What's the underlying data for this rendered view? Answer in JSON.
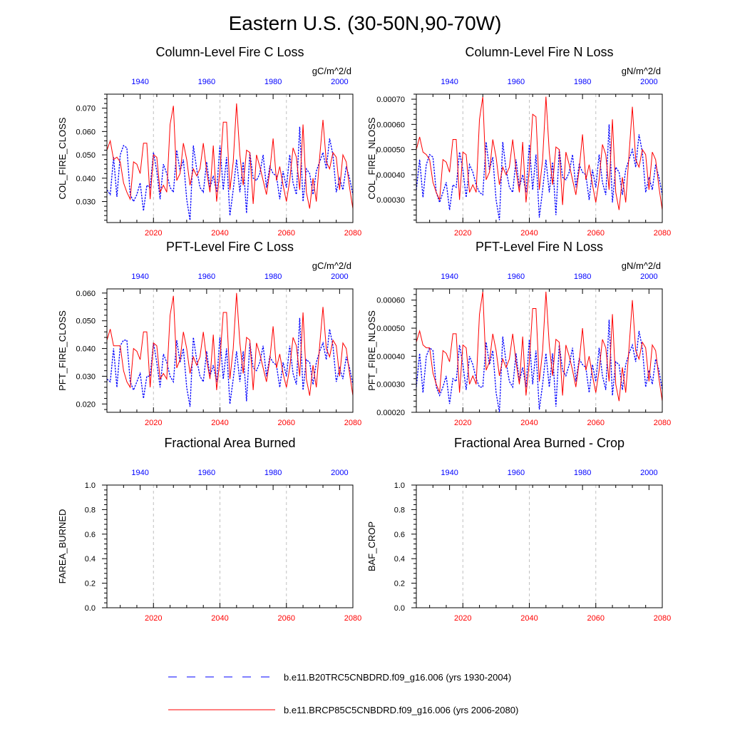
{
  "page_title": "Eastern U.S. (30-50N,90-70W)",
  "colors": {
    "blue": "#0000ff",
    "red": "#ff0000",
    "axis": "#000000",
    "grid": "#c0c0c0"
  },
  "legend": [
    {
      "name": "blue",
      "label": "b.e11.B20TRC5CNBDRD.f09_g16.006 (yrs 1930-2004)",
      "style": "dashed",
      "color": "#0000ff"
    },
    {
      "name": "red",
      "label": "b.e11.BRCP85C5CNBDRD.f09_g16.006 (yrs 2006-2080)",
      "style": "solid",
      "color": "#ff0000"
    }
  ],
  "chart_data": [
    {
      "id": "col-fire-c",
      "type": "line",
      "title": "Column-Level Fire C Loss",
      "units": "gC/m^2/d",
      "ylabel": "COL_FIRE_CLOSS",
      "ylim": [
        0.021,
        0.076
      ],
      "yticks": [
        0.03,
        0.04,
        0.05,
        0.06,
        0.07
      ],
      "ytick_labels": [
        "0.030",
        "0.040",
        "0.050",
        "0.060",
        "0.070"
      ],
      "bottom_axis": {
        "range": [
          2006,
          2080
        ],
        "ticks": [
          2020,
          2040,
          2060,
          2080
        ],
        "labels": [
          "2020",
          "2040",
          "2060",
          "2080"
        ]
      },
      "top_axis": {
        "range": [
          1930,
          2004
        ],
        "ticks": [
          1940,
          1960,
          1980,
          2000
        ],
        "labels": [
          "1940",
          "1960",
          "1980",
          "2000"
        ]
      },
      "series": [
        {
          "name": "blue",
          "values": [
            0.035,
            0.033,
            0.049,
            0.032,
            0.05,
            0.054,
            0.053,
            0.033,
            0.03,
            0.033,
            0.038,
            0.026,
            0.037,
            0.036,
            0.051,
            0.043,
            0.031,
            0.046,
            0.042,
            0.036,
            0.034,
            0.052,
            0.043,
            0.048,
            0.031,
            0.022,
            0.054,
            0.044,
            0.036,
            0.034,
            0.047,
            0.036,
            0.041,
            0.034,
            0.054,
            0.035,
            0.049,
            0.024,
            0.035,
            0.048,
            0.034,
            0.047,
            0.025,
            0.051,
            0.04,
            0.039,
            0.042,
            0.05,
            0.036,
            0.045,
            0.042,
            0.041,
            0.031,
            0.043,
            0.036,
            0.05,
            0.038,
            0.033,
            0.062,
            0.03,
            0.044,
            0.042,
            0.033,
            0.043,
            0.047,
            0.051,
            0.044,
            0.057,
            0.05,
            0.034,
            0.04,
            0.035,
            0.045,
            0.04,
            0.033
          ]
        },
        {
          "name": "red",
          "values": [
            0.052,
            0.056,
            0.048,
            0.049,
            0.047,
            0.038,
            0.034,
            0.031,
            0.047,
            0.046,
            0.042,
            0.055,
            0.055,
            0.031,
            0.05,
            0.049,
            0.034,
            0.037,
            0.034,
            0.063,
            0.071,
            0.039,
            0.042,
            0.055,
            0.048,
            0.037,
            0.044,
            0.041,
            0.044,
            0.055,
            0.043,
            0.034,
            0.054,
            0.03,
            0.043,
            0.064,
            0.064,
            0.035,
            0.047,
            0.072,
            0.05,
            0.037,
            0.052,
            0.051,
            0.029,
            0.05,
            0.045,
            0.039,
            0.033,
            0.043,
            0.057,
            0.039,
            0.045,
            0.037,
            0.03,
            0.039,
            0.053,
            0.049,
            0.035,
            0.063,
            0.034,
            0.027,
            0.04,
            0.03,
            0.049,
            0.065,
            0.047,
            0.044,
            0.051,
            0.049,
            0.035,
            0.05,
            0.047,
            0.036,
            0.027
          ]
        }
      ]
    },
    {
      "id": "col-fire-n",
      "type": "line",
      "title": "Column-Level Fire N Loss",
      "units": "gN/m^2/d",
      "ylabel": "COL_FIRE_NLOSS",
      "ylim": [
        0.00021,
        0.00072
      ],
      "yticks": [
        0.0003,
        0.0004,
        0.0005,
        0.0006,
        0.0007
      ],
      "ytick_labels": [
        "0.00030",
        "0.00040",
        "0.00050",
        "0.00060",
        "0.00070"
      ],
      "bottom_axis": {
        "range": [
          2006,
          2080
        ],
        "ticks": [
          2020,
          2040,
          2060,
          2080
        ],
        "labels": [
          "2020",
          "2040",
          "2060",
          "2080"
        ]
      },
      "top_axis": {
        "range": [
          1930,
          2004
        ],
        "ticks": [
          1940,
          1960,
          1980,
          2000
        ],
        "labels": [
          "1940",
          "1960",
          "1980",
          "2000"
        ]
      },
      "series": [
        {
          "name": "blue",
          "values": [
            0.00034,
            0.00046,
            0.00031,
            0.00044,
            0.00048,
            0.00047,
            0.00033,
            0.00029,
            0.00033,
            0.00037,
            0.00026,
            0.00036,
            0.00035,
            0.00049,
            0.00042,
            0.00031,
            0.00044,
            0.00041,
            0.00036,
            0.00033,
            0.00032,
            0.00053,
            0.00042,
            0.00047,
            0.0003,
            0.00022,
            0.00053,
            0.00042,
            0.00035,
            0.00033,
            0.00046,
            0.00035,
            0.0004,
            0.00033,
            0.00052,
            0.00034,
            0.00048,
            0.00023,
            0.00034,
            0.00046,
            0.00033,
            0.00045,
            0.00024,
            0.0005,
            0.00039,
            0.00038,
            0.00041,
            0.00048,
            0.00035,
            0.00044,
            0.00041,
            0.0004,
            0.0003,
            0.00042,
            0.00035,
            0.00048,
            0.00037,
            0.00032,
            0.0006,
            0.00029,
            0.00043,
            0.00041,
            0.00032,
            0.00042,
            0.00046,
            0.0005,
            0.00043,
            0.00056,
            0.00049,
            0.00033,
            0.00039,
            0.00034,
            0.00044,
            0.00039,
            0.00032
          ]
        },
        {
          "name": "red",
          "values": [
            0.0005,
            0.00055,
            0.00049,
            0.00048,
            0.00046,
            0.00037,
            0.00033,
            0.0003,
            0.00046,
            0.00045,
            0.00041,
            0.00054,
            0.00054,
            0.0003,
            0.00049,
            0.00048,
            0.00033,
            0.00036,
            0.00033,
            0.00062,
            0.00071,
            0.00038,
            0.00041,
            0.00054,
            0.00047,
            0.00036,
            0.00043,
            0.0004,
            0.00043,
            0.00054,
            0.00042,
            0.00033,
            0.00053,
            0.00029,
            0.00042,
            0.00064,
            0.00063,
            0.00034,
            0.00046,
            0.00071,
            0.00049,
            0.00036,
            0.00051,
            0.0005,
            0.00028,
            0.00049,
            0.00044,
            0.00038,
            0.00032,
            0.00042,
            0.00056,
            0.00038,
            0.00044,
            0.00036,
            0.00029,
            0.00038,
            0.00052,
            0.00048,
            0.00034,
            0.00062,
            0.00033,
            0.00026,
            0.00039,
            0.00029,
            0.00048,
            0.00067,
            0.00046,
            0.00043,
            0.0005,
            0.00048,
            0.00034,
            0.00049,
            0.00046,
            0.00035,
            0.00026
          ]
        }
      ]
    },
    {
      "id": "pft-fire-c",
      "type": "line",
      "title": "PFT-Level Fire C Loss",
      "units": "gC/m^2/d",
      "ylabel": "PFT_FIRE_CLOSS",
      "ylim": [
        0.017,
        0.0615
      ],
      "yticks": [
        0.02,
        0.03,
        0.04,
        0.05,
        0.06
      ],
      "ytick_labels": [
        "0.020",
        "0.030",
        "0.040",
        "0.050",
        "0.060"
      ],
      "bottom_axis": {
        "range": [
          2006,
          2080
        ],
        "ticks": [
          2020,
          2040,
          2060,
          2080
        ],
        "labels": [
          "2020",
          "2040",
          "2060",
          "2080"
        ]
      },
      "top_axis": {
        "range": [
          1930,
          2004
        ],
        "ticks": [
          1940,
          1960,
          1980,
          2000
        ],
        "labels": [
          "1940",
          "1960",
          "1980",
          "2000"
        ]
      },
      "series": [
        {
          "name": "blue",
          "values": [
            0.029,
            0.028,
            0.04,
            0.026,
            0.041,
            0.043,
            0.043,
            0.028,
            0.025,
            0.028,
            0.031,
            0.022,
            0.03,
            0.03,
            0.042,
            0.035,
            0.026,
            0.038,
            0.035,
            0.03,
            0.028,
            0.043,
            0.035,
            0.04,
            0.026,
            0.019,
            0.044,
            0.036,
            0.03,
            0.028,
            0.039,
            0.03,
            0.034,
            0.028,
            0.044,
            0.029,
            0.04,
            0.02,
            0.029,
            0.039,
            0.028,
            0.039,
            0.021,
            0.042,
            0.033,
            0.032,
            0.035,
            0.041,
            0.03,
            0.037,
            0.035,
            0.034,
            0.026,
            0.035,
            0.03,
            0.041,
            0.031,
            0.027,
            0.051,
            0.025,
            0.036,
            0.035,
            0.027,
            0.035,
            0.039,
            0.042,
            0.036,
            0.047,
            0.041,
            0.028,
            0.033,
            0.029,
            0.037,
            0.033,
            0.027
          ]
        },
        {
          "name": "red",
          "values": [
            0.043,
            0.047,
            0.041,
            0.041,
            0.041,
            0.032,
            0.028,
            0.026,
            0.04,
            0.039,
            0.036,
            0.046,
            0.046,
            0.026,
            0.042,
            0.041,
            0.029,
            0.031,
            0.029,
            0.052,
            0.059,
            0.033,
            0.036,
            0.046,
            0.04,
            0.031,
            0.037,
            0.034,
            0.037,
            0.046,
            0.036,
            0.029,
            0.045,
            0.025,
            0.036,
            0.053,
            0.053,
            0.029,
            0.04,
            0.06,
            0.042,
            0.031,
            0.044,
            0.043,
            0.025,
            0.042,
            0.038,
            0.033,
            0.028,
            0.036,
            0.048,
            0.033,
            0.038,
            0.031,
            0.026,
            0.033,
            0.044,
            0.041,
            0.03,
            0.053,
            0.029,
            0.023,
            0.034,
            0.026,
            0.041,
            0.055,
            0.04,
            0.037,
            0.043,
            0.041,
            0.03,
            0.042,
            0.04,
            0.031,
            0.023
          ]
        }
      ]
    },
    {
      "id": "pft-fire-n",
      "type": "line",
      "title": "PFT-Level Fire N Loss",
      "units": "gN/m^2/d",
      "ylabel": "PFT_FIRE_NLOSS",
      "ylim": [
        0.0002,
        0.00064
      ],
      "yticks": [
        0.0002,
        0.0003,
        0.0004,
        0.0005,
        0.0006
      ],
      "ytick_labels": [
        "0.00020",
        "0.00030",
        "0.00040",
        "0.00050",
        "0.00060"
      ],
      "bottom_axis": {
        "range": [
          2006,
          2080
        ],
        "ticks": [
          2020,
          2040,
          2060,
          2080
        ],
        "labels": [
          "2020",
          "2040",
          "2060",
          "2080"
        ]
      },
      "top_axis": {
        "range": [
          1930,
          2004
        ],
        "ticks": [
          1940,
          1960,
          1980,
          2000
        ],
        "labels": [
          "1940",
          "1960",
          "1980",
          "2000"
        ]
      },
      "series": [
        {
          "name": "blue",
          "values": [
            0.00029,
            0.00041,
            0.00027,
            0.0004,
            0.00043,
            0.00042,
            0.00029,
            0.00026,
            0.00029,
            0.00033,
            0.00023,
            0.00032,
            0.00031,
            0.00044,
            0.00037,
            0.00028,
            0.0004,
            0.00037,
            0.00032,
            0.00029,
            0.00029,
            0.00045,
            0.00037,
            0.00042,
            0.00027,
            0.0002,
            0.00047,
            0.00038,
            0.00031,
            0.00029,
            0.00041,
            0.00031,
            0.00036,
            0.00029,
            0.00046,
            0.0003,
            0.00042,
            0.00021,
            0.0003,
            0.00041,
            0.00029,
            0.00041,
            0.00022,
            0.00044,
            0.00035,
            0.00033,
            0.00037,
            0.00043,
            0.00031,
            0.00039,
            0.00037,
            0.00036,
            0.00027,
            0.00037,
            0.00031,
            0.00043,
            0.00033,
            0.00028,
            0.00053,
            0.00026,
            0.00038,
            0.00037,
            0.00028,
            0.00037,
            0.00041,
            0.00044,
            0.00038,
            0.00049,
            0.00043,
            0.00029,
            0.00035,
            0.0003,
            0.00039,
            0.00035,
            0.00028
          ]
        },
        {
          "name": "red",
          "values": [
            0.00045,
            0.00049,
            0.00044,
            0.00043,
            0.00043,
            0.00034,
            0.0003,
            0.00027,
            0.00042,
            0.00041,
            0.00038,
            0.00048,
            0.00048,
            0.00027,
            0.00044,
            0.00043,
            0.0003,
            0.00033,
            0.0003,
            0.00055,
            0.00063,
            0.00035,
            0.00038,
            0.00048,
            0.00042,
            0.00033,
            0.00039,
            0.00036,
            0.00039,
            0.00048,
            0.00038,
            0.0003,
            0.00047,
            0.00026,
            0.00038,
            0.00057,
            0.00057,
            0.00031,
            0.00042,
            0.00063,
            0.00044,
            0.00033,
            0.00046,
            0.00045,
            0.00026,
            0.00044,
            0.0004,
            0.00035,
            0.00029,
            0.00038,
            0.0005,
            0.00035,
            0.0004,
            0.00033,
            0.00027,
            0.00035,
            0.00046,
            0.00043,
            0.00031,
            0.00055,
            0.0003,
            0.00024,
            0.00036,
            0.00027,
            0.00043,
            0.0006,
            0.00042,
            0.00039,
            0.00045,
            0.00043,
            0.00031,
            0.00044,
            0.00042,
            0.00032,
            0.00024
          ]
        }
      ]
    },
    {
      "id": "farea-burned",
      "type": "line",
      "title": "Fractional Area Burned",
      "units": "",
      "ylabel": "FAREA_BURNED",
      "ylim": [
        0.0,
        1.0
      ],
      "yticks": [
        0.0,
        0.2,
        0.4,
        0.6,
        0.8,
        1.0
      ],
      "ytick_labels": [
        "0.0",
        "0.2",
        "0.4",
        "0.6",
        "0.8",
        "1.0"
      ],
      "bottom_axis": {
        "range": [
          2006,
          2080
        ],
        "ticks": [
          2020,
          2040,
          2060,
          2080
        ],
        "labels": [
          "2020",
          "2040",
          "2060",
          "2080"
        ]
      },
      "top_axis": {
        "range": [
          1930,
          2004
        ],
        "ticks": [
          1940,
          1960,
          1980,
          2000
        ],
        "labels": [
          "1940",
          "1960",
          "1980",
          "2000"
        ]
      },
      "series": []
    },
    {
      "id": "baf-crop",
      "type": "line",
      "title": "Fractional Area Burned - Crop",
      "units": "",
      "ylabel": "BAF_CROP",
      "ylim": [
        0.0,
        1.0
      ],
      "yticks": [
        0.0,
        0.2,
        0.4,
        0.6,
        0.8,
        1.0
      ],
      "ytick_labels": [
        "0.0",
        "0.2",
        "0.4",
        "0.6",
        "0.8",
        "1.0"
      ],
      "bottom_axis": {
        "range": [
          2006,
          2080
        ],
        "ticks": [
          2020,
          2040,
          2060,
          2080
        ],
        "labels": [
          "2020",
          "2040",
          "2060",
          "2080"
        ]
      },
      "top_axis": {
        "range": [
          1930,
          2004
        ],
        "ticks": [
          1940,
          1960,
          1980,
          2000
        ],
        "labels": [
          "1940",
          "1960",
          "1980",
          "2000"
        ]
      },
      "series": []
    }
  ]
}
